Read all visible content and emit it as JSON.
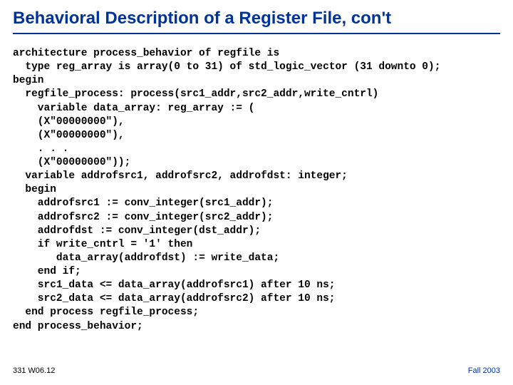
{
  "title": "Behavioral Description of a Register File, con't",
  "code_lines": [
    "architecture process_behavior of regfile is",
    "  type reg_array is array(0 to 31) of std_logic_vector (31 downto 0);",
    "begin",
    "  regfile_process: process(src1_addr,src2_addr,write_cntrl)",
    "    variable data_array: reg_array := (",
    "    (X\"00000000\"),",
    "    (X\"00000000\"),",
    "    . . .",
    "    (X\"00000000\"));",
    "  variable addrofsrc1, addrofsrc2, addrofdst: integer;",
    "  begin",
    "    addrofsrc1 := conv_integer(src1_addr);",
    "    addrofsrc2 := conv_integer(src2_addr);",
    "    addrofdst := conv_integer(dst_addr);",
    "    if write_cntrl = '1' then",
    "       data_array(addrofdst) := write_data;",
    "    end if;",
    "    src1_data <= data_array(addrofsrc1) after 10 ns;",
    "    src2_data <= data_array(addrofsrc2) after 10 ns;",
    "  end process regfile_process;",
    "end process_behavior;"
  ],
  "footer_left": "331 W06.12",
  "footer_right": "Fall 2003",
  "colors": {
    "title_text": "#003399",
    "title_rule": "#003399",
    "body_text": "#000000",
    "footer_right": "#003399",
    "background": "#ffffff"
  },
  "fontsize": {
    "title": 24,
    "code": 14.5,
    "footer": 11
  }
}
